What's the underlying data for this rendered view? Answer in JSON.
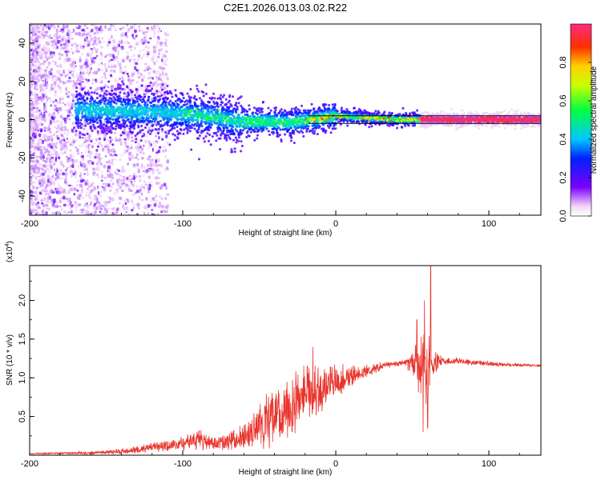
{
  "chart_data": [
    {
      "type": "heatmap",
      "title": "C2E1.2026.013.03.02.R22",
      "xlabel": "Height of straight line (km)",
      "ylabel": "Frequency (Hz)",
      "xlim": [
        -200,
        134
      ],
      "ylim": [
        -50,
        50
      ],
      "xticks": [
        -200,
        -100,
        0,
        100
      ],
      "yticks": [
        -40,
        -20,
        0,
        20,
        40
      ],
      "ridge_frequency": [
        {
          "x": -165,
          "y": 5
        },
        {
          "x": -140,
          "y": 4.5
        },
        {
          "x": -120,
          "y": 4
        },
        {
          "x": -100,
          "y": 3
        },
        {
          "x": -80,
          "y": 1.5
        },
        {
          "x": -65,
          "y": -1
        },
        {
          "x": -50,
          "y": -1
        },
        {
          "x": -30,
          "y": -1.5
        },
        {
          "x": -15,
          "y": 0
        },
        {
          "x": 0,
          "y": 2
        },
        {
          "x": 20,
          "y": 1
        },
        {
          "x": 40,
          "y": 0
        },
        {
          "x": 55,
          "y": 0
        },
        {
          "x": 80,
          "y": 0
        },
        {
          "x": 134,
          "y": 0
        }
      ],
      "reference_lines_hz": [
        2,
        -2
      ],
      "colorbar": {
        "label": "Normalized spectral amplitude",
        "ticks": [
          0.0,
          0.2,
          0.4,
          0.6,
          0.8
        ],
        "tick_labels": [
          "0.0",
          "0.2",
          "0.4",
          "0.6",
          "0.8"
        ],
        "range": [
          0,
          1
        ]
      }
    },
    {
      "type": "line",
      "xlabel": "Height of straight line (km)",
      "ylabel": "SNR (10 * v/v)",
      "y_multiplier_base": "(x10",
      "y_multiplier_exp": "4",
      "y_multiplier_close": ")",
      "xlim": [
        -200,
        134
      ],
      "ylim": [
        0,
        2.45
      ],
      "xticks": [
        -200,
        -100,
        0,
        100
      ],
      "yticks": [
        0.5,
        1.0,
        1.5,
        2.0
      ],
      "ytick_labels": [
        "0.5",
        "1.0",
        "1.5",
        "2.0"
      ],
      "color": "#e8332b",
      "envelope": [
        {
          "x": -200,
          "base": 0.02,
          "amp": 0.01
        },
        {
          "x": -160,
          "base": 0.03,
          "amp": 0.02
        },
        {
          "x": -140,
          "base": 0.05,
          "amp": 0.04
        },
        {
          "x": -120,
          "base": 0.1,
          "amp": 0.07
        },
        {
          "x": -100,
          "base": 0.15,
          "amp": 0.1
        },
        {
          "x": -90,
          "base": 0.2,
          "amp": 0.15
        },
        {
          "x": -80,
          "base": 0.15,
          "amp": 0.1
        },
        {
          "x": -70,
          "base": 0.18,
          "amp": 0.15
        },
        {
          "x": -60,
          "base": 0.25,
          "amp": 0.22
        },
        {
          "x": -50,
          "base": 0.35,
          "amp": 0.35
        },
        {
          "x": -40,
          "base": 0.5,
          "amp": 0.45
        },
        {
          "x": -30,
          "base": 0.65,
          "amp": 0.5
        },
        {
          "x": -20,
          "base": 0.8,
          "amp": 0.5
        },
        {
          "x": -10,
          "base": 0.85,
          "amp": 0.4
        },
        {
          "x": 0,
          "base": 0.95,
          "amp": 0.25
        },
        {
          "x": 10,
          "base": 1.02,
          "amp": 0.15
        },
        {
          "x": 20,
          "base": 1.08,
          "amp": 0.1
        },
        {
          "x": 30,
          "base": 1.15,
          "amp": 0.06
        },
        {
          "x": 40,
          "base": 1.18,
          "amp": 0.04
        },
        {
          "x": 45,
          "base": 1.2,
          "amp": 0.04
        },
        {
          "x": 50,
          "base": 1.2,
          "amp": 0.2
        },
        {
          "x": 55,
          "base": 1.15,
          "amp": 0.5
        },
        {
          "x": 60,
          "base": 1.1,
          "amp": 0.6
        },
        {
          "x": 63,
          "base": 1.18,
          "amp": 0.2
        },
        {
          "x": 70,
          "base": 1.22,
          "amp": 0.06
        },
        {
          "x": 90,
          "base": 1.2,
          "amp": 0.04
        },
        {
          "x": 110,
          "base": 1.17,
          "amp": 0.03
        },
        {
          "x": 134,
          "base": 1.16,
          "amp": 0.02
        }
      ],
      "spikes": [
        {
          "x": -15,
          "y": 1.4
        },
        {
          "x": 53,
          "y": 1.75
        },
        {
          "x": 58,
          "y": 2.0
        },
        {
          "x": 62,
          "y": 2.45
        },
        {
          "x": 57,
          "y": 0.3
        },
        {
          "x": 60,
          "y": 0.35
        }
      ]
    }
  ]
}
